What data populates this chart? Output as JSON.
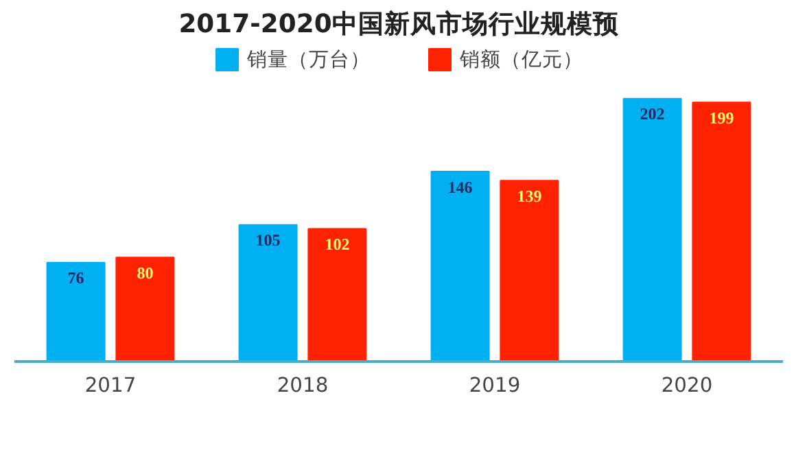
{
  "chart_data": {
    "type": "bar",
    "title": "2017-2020中国新风市场行业规模预",
    "categories": [
      "2017",
      "2018",
      "2019",
      "2020"
    ],
    "series": [
      {
        "name": "销量（万台）",
        "color": "#00b0f0",
        "values": [
          76,
          105,
          146,
          202
        ]
      },
      {
        "name": "销额（亿元）",
        "color": "#ff2200",
        "values": [
          80,
          102,
          139,
          199
        ]
      }
    ],
    "data_labels": true,
    "legend": "top"
  }
}
